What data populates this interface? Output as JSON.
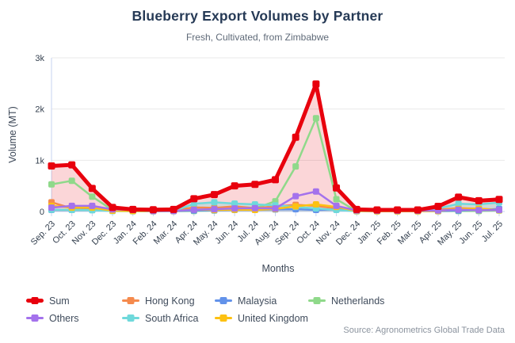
{
  "source": "Source: Agronometrics Global Trade Data",
  "chart_data": {
    "type": "line",
    "title": "Blueberry Export Volumes by Partner",
    "subtitle": "Fresh, Cultivated, from Zimbabwe",
    "xlabel": "Months",
    "ylabel": "Volume (MT)",
    "ylim": [
      0,
      3000
    ],
    "grid": true,
    "legend_position": "bottom",
    "yticks": [
      {
        "value": 0,
        "label": "0"
      },
      {
        "value": 1000,
        "label": "1k"
      },
      {
        "value": 2000,
        "label": "2k"
      },
      {
        "value": 3000,
        "label": "3k"
      }
    ],
    "categories": [
      "Sep. 23",
      "Oct. 23",
      "Nov. 23",
      "Dec. 23",
      "Jan. 24",
      "Feb. 24",
      "Mar. 24",
      "Apr. 24",
      "May. 24",
      "Jun. 24",
      "Jul. 24",
      "Aug. 24",
      "Sep. 24",
      "Oct. 24",
      "Nov. 24",
      "Dec. 24",
      "Jan. 25",
      "Feb. 25",
      "Mar. 25",
      "Apr. 25",
      "May. 25",
      "Jun. 25",
      "Jul. 25"
    ],
    "series": [
      {
        "name": "Sum",
        "color": "#e8000d",
        "emphasis": true,
        "fill_opacity": 0.16,
        "values": [
          890,
          910,
          450,
          80,
          40,
          35,
          40,
          250,
          330,
          500,
          530,
          620,
          1450,
          2490,
          460,
          40,
          30,
          30,
          30,
          100,
          280,
          210,
          235
        ]
      },
      {
        "name": "Hong Kong",
        "color": "#f58a4d",
        "emphasis": false,
        "fill_opacity": 0,
        "values": [
          180,
          60,
          45,
          20,
          10,
          10,
          20,
          80,
          70,
          100,
          65,
          100,
          130,
          110,
          60,
          10,
          5,
          5,
          10,
          35,
          65,
          55,
          35
        ]
      },
      {
        "name": "Malaysia",
        "color": "#6292ea",
        "emphasis": false,
        "fill_opacity": 0,
        "values": [
          30,
          30,
          30,
          20,
          15,
          10,
          10,
          20,
          25,
          30,
          30,
          40,
          45,
          30,
          40,
          10,
          10,
          10,
          10,
          10,
          20,
          30,
          50
        ]
      },
      {
        "name": "Netherlands",
        "color": "#8fd98a",
        "emphasis": false,
        "fill_opacity": 0,
        "values": [
          530,
          600,
          290,
          30,
          5,
          5,
          5,
          10,
          20,
          40,
          60,
          200,
          880,
          1820,
          240,
          5,
          5,
          5,
          5,
          5,
          10,
          10,
          20
        ]
      },
      {
        "name": "Others",
        "color": "#a472ec",
        "emphasis": false,
        "fill_opacity": 0,
        "values": [
          75,
          110,
          110,
          40,
          30,
          10,
          10,
          35,
          45,
          60,
          65,
          60,
          300,
          390,
          110,
          20,
          15,
          15,
          15,
          20,
          35,
          25,
          30
        ]
      },
      {
        "name": "South Africa",
        "color": "#6fd9db",
        "emphasis": false,
        "fill_opacity": 0.3,
        "values": [
          35,
          30,
          25,
          10,
          5,
          5,
          10,
          150,
          180,
          155,
          140,
          120,
          90,
          60,
          30,
          5,
          5,
          5,
          5,
          60,
          150,
          140,
          175
        ]
      },
      {
        "name": "United Kingdom",
        "color": "#fdc112",
        "emphasis": false,
        "fill_opacity": 0,
        "values": [
          110,
          75,
          75,
          15,
          10,
          10,
          10,
          40,
          30,
          35,
          30,
          50,
          100,
          140,
          90,
          10,
          5,
          5,
          5,
          10,
          50,
          55,
          25
        ]
      }
    ],
    "fill_order": [
      "Sum",
      "South Africa"
    ],
    "draw_order": [
      "Netherlands",
      "Hong Kong",
      "Malaysia",
      "South Africa",
      "United Kingdom",
      "Others",
      "Sum"
    ],
    "axis_color": "#c7d3f2",
    "grid_color": "#e9e9e9"
  }
}
